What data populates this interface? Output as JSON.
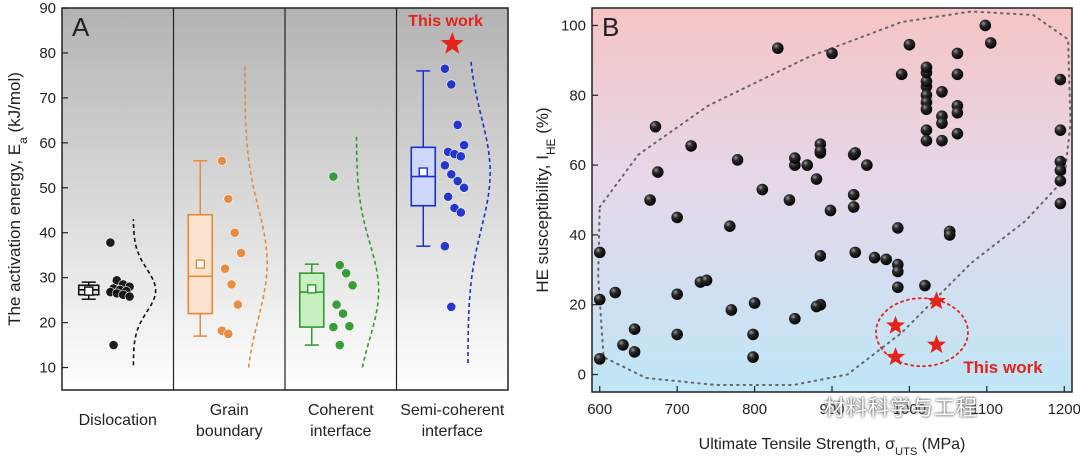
{
  "chart_data": [
    {
      "type": "box",
      "panel_label": "A",
      "ylabel": "The activation energy, E",
      "ylabel_sub": "a",
      "ylabel_unit": " (kJ/mol)",
      "ylim": [
        5,
        90
      ],
      "yticks": [
        10,
        20,
        30,
        40,
        50,
        60,
        70,
        80,
        90
      ],
      "annotation": "This work",
      "star_value": 82,
      "groups": [
        {
          "name": "dislocation",
          "label_lines": [
            "Dislocation"
          ],
          "color": "#111111",
          "fill": "#e6e6e6",
          "box": {
            "q1": 26.2,
            "median": 27.3,
            "q3": 28.3,
            "mean": 27.0,
            "whisker_low": 25.2,
            "whisker_high": 29.0
          },
          "points": [
            37.8,
            29.4,
            28.5,
            28.0,
            27.6,
            27.3,
            27.0,
            26.8,
            26.5,
            26.2,
            25.8,
            15.0
          ],
          "curve_range": [
            10.5,
            43
          ]
        },
        {
          "name": "grain-boundary",
          "label_lines": [
            "Grain",
            "boundary"
          ],
          "color": "#e8893a",
          "fill": "#fbe3cf",
          "box": {
            "q1": 22.0,
            "median": 30.3,
            "q3": 44.0,
            "mean": 33.0,
            "whisker_low": 17.0,
            "whisker_high": 56.0
          },
          "points": [
            56.0,
            47.5,
            40.0,
            35.5,
            32.0,
            28.5,
            24.0,
            18.2,
            17.5
          ],
          "curve_range": [
            10,
            77
          ]
        },
        {
          "name": "coherent-interface",
          "label_lines": [
            "Coherent",
            "interface"
          ],
          "color": "#2e9a2e",
          "fill": "#c9efc0",
          "box": {
            "q1": 19.0,
            "median": 26.8,
            "q3": 31.0,
            "mean": 27.5,
            "whisker_low": 15.0,
            "whisker_high": 33.0
          },
          "points": [
            52.5,
            32.8,
            31.0,
            28.3,
            24.0,
            22.0,
            19.2,
            19.0,
            15.0
          ],
          "curve_range": [
            10,
            62
          ]
        },
        {
          "name": "semi-coherent-interface",
          "label_lines": [
            "Semi-coherent",
            "interface"
          ],
          "color": "#1a2fd0",
          "fill": "#cfd8fa",
          "box": {
            "q1": 46.0,
            "median": 52.5,
            "q3": 59.0,
            "mean": 53.5,
            "whisker_low": 37.0,
            "whisker_high": 76.0
          },
          "points": [
            76.5,
            73.0,
            64.0,
            59.5,
            58.0,
            57.5,
            57.0,
            55.0,
            53.0,
            51.5,
            50.0,
            48.0,
            45.5,
            44.5,
            37.0,
            23.5
          ],
          "curve_range": [
            11,
            78
          ]
        }
      ]
    },
    {
      "type": "scatter",
      "panel_label": "B",
      "xlabel": "Ultimate Tensile Strength, σ",
      "xlabel_sub": "UTS",
      "xlabel_unit": " (MPa)",
      "ylabel": "HE susceptibility, I",
      "ylabel_sub": "HE",
      "ylabel_unit": " (%)",
      "xlim": [
        590,
        1210
      ],
      "ylim": [
        -5,
        105
      ],
      "xticks": [
        600,
        700,
        800,
        900,
        1000,
        1100,
        1200
      ],
      "yticks": [
        0,
        20,
        40,
        60,
        80,
        100
      ],
      "annotation": "This work",
      "points": [
        [
          600,
          35
        ],
        [
          600,
          21.5
        ],
        [
          600,
          4.5
        ],
        [
          620,
          23.5
        ],
        [
          630,
          8.5
        ],
        [
          645,
          6.5
        ],
        [
          645,
          13
        ],
        [
          665,
          50
        ],
        [
          672,
          71
        ],
        [
          675,
          58
        ],
        [
          700,
          45
        ],
        [
          700,
          23
        ],
        [
          700,
          11.5
        ],
        [
          718,
          65.5
        ],
        [
          730,
          26.5
        ],
        [
          738,
          27
        ],
        [
          768,
          42.5
        ],
        [
          770,
          18.5
        ],
        [
          778,
          61.5
        ],
        [
          798,
          11.5
        ],
        [
          798,
          5
        ],
        [
          800,
          20.5
        ],
        [
          810,
          53
        ],
        [
          830,
          93.5
        ],
        [
          845,
          50
        ],
        [
          852,
          16
        ],
        [
          852,
          60
        ],
        [
          852,
          62
        ],
        [
          868,
          60
        ],
        [
          880,
          56
        ],
        [
          885,
          63.5
        ],
        [
          885,
          66
        ],
        [
          885,
          64
        ],
        [
          885,
          34
        ],
        [
          885,
          20
        ],
        [
          880,
          19.5
        ],
        [
          898,
          47
        ],
        [
          900,
          92
        ],
        [
          928,
          48
        ],
        [
          928,
          51.5
        ],
        [
          928,
          63
        ],
        [
          930,
          63.5
        ],
        [
          930,
          35
        ],
        [
          945,
          60
        ],
        [
          955,
          33.5
        ],
        [
          970,
          33
        ],
        [
          985,
          31.5
        ],
        [
          985,
          29.5
        ],
        [
          985,
          25
        ],
        [
          985,
          42
        ],
        [
          990,
          86
        ],
        [
          1000,
          94.5
        ],
        [
          1020,
          25.5
        ],
        [
          1022,
          82.5
        ],
        [
          1022,
          84
        ],
        [
          1022,
          86.5
        ],
        [
          1022,
          88
        ],
        [
          1022,
          80
        ],
        [
          1022,
          78
        ],
        [
          1022,
          76
        ],
        [
          1022,
          70
        ],
        [
          1022,
          67
        ],
        [
          1042,
          81
        ],
        [
          1042,
          74
        ],
        [
          1042,
          72
        ],
        [
          1042,
          67
        ],
        [
          1052,
          41
        ],
        [
          1052,
          40
        ],
        [
          1062,
          92
        ],
        [
          1062,
          86
        ],
        [
          1062,
          77
        ],
        [
          1062,
          75
        ],
        [
          1062,
          69
        ],
        [
          1098,
          100
        ],
        [
          1105,
          95
        ],
        [
          1195,
          84.5
        ],
        [
          1195,
          70
        ],
        [
          1195,
          61
        ],
        [
          1195,
          58.5
        ],
        [
          1195,
          55.5
        ],
        [
          1195,
          49
        ]
      ],
      "this_work_points": [
        [
          982,
          14
        ],
        [
          982,
          5
        ],
        [
          1035,
          21
        ],
        [
          1035,
          8.5
        ]
      ]
    }
  ],
  "watermark": "材料科学与工程"
}
